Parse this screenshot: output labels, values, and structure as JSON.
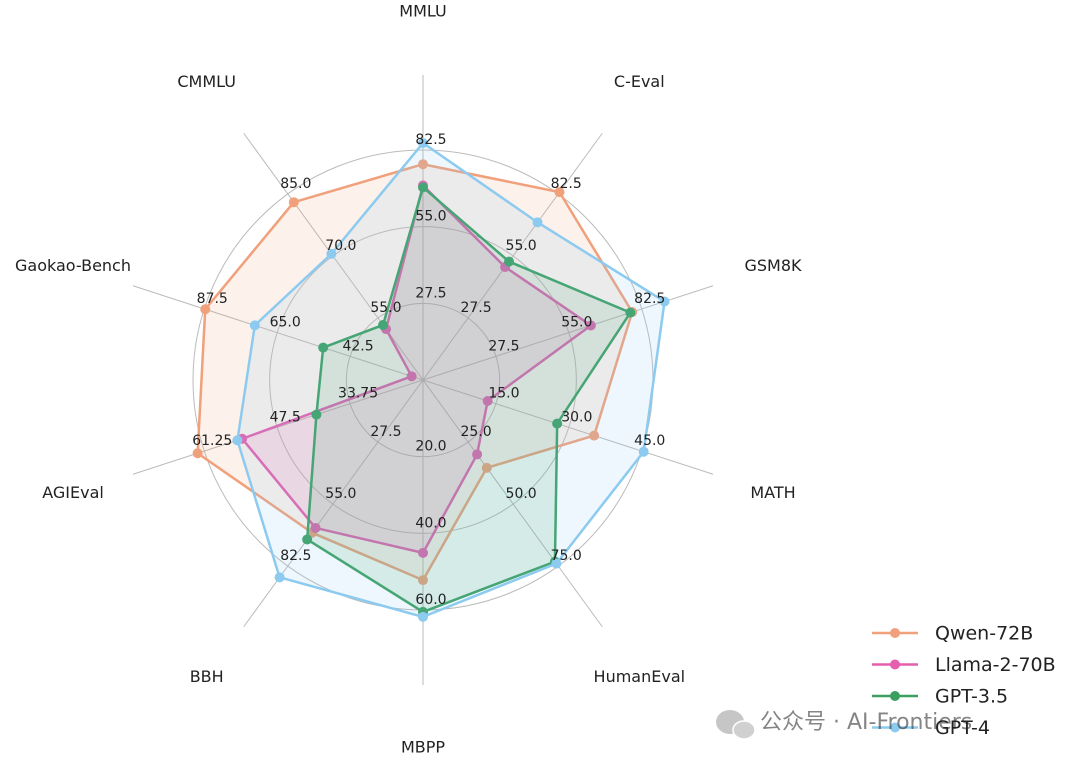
{
  "chart_data": {
    "type": "radar",
    "axes": [
      {
        "name": "MMLU",
        "rlim": [
          0,
          82.5
        ],
        "rticks": [
          27.5,
          {
            "value": 55,
            "label": "55.0"
          },
          82.5
        ]
      },
      {
        "name": "C-Eval",
        "rlim": [
          0,
          82.5
        ],
        "rticks": [
          27.5,
          {
            "value": 55,
            "label": "55.0"
          },
          82.5
        ]
      },
      {
        "name": "GSM8K",
        "rlim": [
          0,
          82.5
        ],
        "rticks": [
          27.5,
          {
            "value": 55,
            "label": "55.0"
          },
          82.5
        ]
      },
      {
        "name": "MATH",
        "rlim": [
          0,
          45
        ],
        "rticks": [
          {
            "value": 15,
            "label": "15.0"
          },
          {
            "value": 30,
            "label": "30.0"
          },
          {
            "value": 45,
            "label": "45.0"
          }
        ]
      },
      {
        "name": "HumanEval",
        "rlim": [
          0,
          75
        ],
        "rticks": [
          {
            "value": 25,
            "label": "25.0"
          },
          {
            "value": 50,
            "label": "50.0"
          },
          {
            "value": 75,
            "label": "75.0"
          }
        ]
      },
      {
        "name": "MBPP",
        "rlim": [
          0,
          60
        ],
        "rticks": [
          {
            "value": 20,
            "label": "20.0"
          },
          {
            "value": 40,
            "label": "40.0"
          },
          {
            "value": 60,
            "label": "60.0"
          }
        ]
      },
      {
        "name": "BBH",
        "rlim": [
          0,
          82.5
        ],
        "rticks": [
          27.5,
          {
            "value": 55,
            "label": "55.0"
          },
          82.5
        ]
      },
      {
        "name": "AGIEval",
        "rlim": [
          20,
          61.25
        ],
        "rticks": [
          33.75,
          47.5,
          61.25
        ]
      },
      {
        "name": "Gaokao-Bench",
        "rlim": [
          20,
          87.5
        ],
        "rticks": [
          42.5,
          {
            "value": 65,
            "label": "65.0"
          },
          87.5
        ]
      },
      {
        "name": "CMMLU",
        "rlim": [
          40,
          85
        ],
        "rticks": [
          {
            "value": 55,
            "label": "55.0"
          },
          {
            "value": 70,
            "label": "70.0"
          },
          {
            "value": 85,
            "label": "85.0"
          }
        ]
      }
    ],
    "series": [
      {
        "name": "Qwen-72B",
        "color": "#f0a07a",
        "values": [
          77.4,
          83.3,
          78.9,
          35.2,
          35.4,
          52.2,
          67.7,
          62.5,
          87.2,
          83.0
        ]
      },
      {
        "name": "Llama-2-70B",
        "color": "#e55fae",
        "values": [
          69.8,
          50.1,
          63.3,
          13.3,
          30.0,
          45.1,
          65.6,
          54.1,
          23.5,
          52.3
        ]
      },
      {
        "name": "GPT-3.5",
        "color": "#3a9f5f",
        "values": [
          69.1,
          52.5,
          78.2,
          27.6,
          73.2,
          60.5,
          70.7,
          40.1,
          50.8,
          53.3
        ]
      },
      {
        "name": "GPT-4",
        "color": "#8ccbef",
        "values": [
          85.0,
          69.9,
          91.1,
          45.4,
          74.0,
          61.8,
          87.5,
          55.0,
          71.9,
          70.5
        ]
      }
    ],
    "legend": "lower right",
    "watermark": "公众号 · AI-Frontiers"
  }
}
